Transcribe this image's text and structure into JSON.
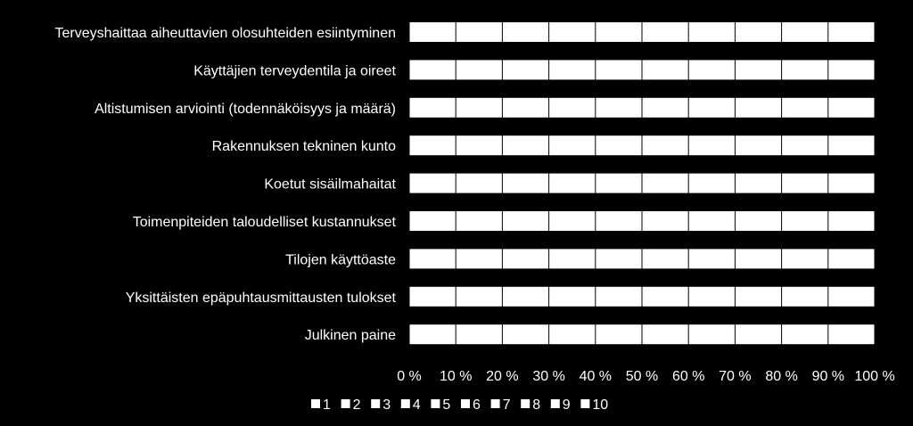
{
  "chart_data": {
    "type": "bar",
    "orientation": "horizontal",
    "stacked": "percent",
    "categories": [
      "Terveyshaittaa aiheuttavien olosuhteiden esiintyminen",
      "Käyttäjien terveydentila ja oireet",
      "Altistumisen arviointi (todennäköisyys ja määrä)",
      "Rakennuksen tekninen kunto",
      "Koetut sisäilmahaitat",
      "Toimenpiteiden taloudelliset kustannukset",
      "Tilojen käyttöaste",
      "Yksittäisten epäpuhtausmittausten tulokset",
      "Julkinen paine"
    ],
    "series": [
      {
        "name": "1",
        "values": [
          10,
          10,
          10,
          10,
          10,
          10,
          10,
          10,
          10
        ]
      },
      {
        "name": "2",
        "values": [
          10,
          10,
          10,
          10,
          10,
          10,
          10,
          10,
          10
        ]
      },
      {
        "name": "3",
        "values": [
          10,
          10,
          10,
          10,
          10,
          10,
          10,
          10,
          10
        ]
      },
      {
        "name": "4",
        "values": [
          10,
          10,
          10,
          10,
          10,
          10,
          10,
          10,
          10
        ]
      },
      {
        "name": "5",
        "values": [
          10,
          10,
          10,
          10,
          10,
          10,
          10,
          10,
          10
        ]
      },
      {
        "name": "6",
        "values": [
          10,
          10,
          10,
          10,
          10,
          10,
          10,
          10,
          10
        ]
      },
      {
        "name": "7",
        "values": [
          10,
          10,
          10,
          10,
          10,
          10,
          10,
          10,
          10
        ]
      },
      {
        "name": "8",
        "values": [
          10,
          10,
          10,
          10,
          10,
          10,
          10,
          10,
          10
        ]
      },
      {
        "name": "9",
        "values": [
          10,
          10,
          10,
          10,
          10,
          10,
          10,
          10,
          10
        ]
      },
      {
        "name": "10",
        "values": [
          10,
          10,
          10,
          10,
          10,
          10,
          10,
          10,
          10
        ]
      }
    ],
    "xlim": [
      0,
      100
    ],
    "x_ticks": [
      "0 %",
      "10 %",
      "20 %",
      "30 %",
      "40 %",
      "50 %",
      "60 %",
      "70 %",
      "80 %",
      "90 %",
      "100 %"
    ],
    "title": "",
    "xlabel": "",
    "ylabel": "",
    "grid": true,
    "legend": "bottom",
    "colors": {
      "background": "#000000",
      "bars": "#ffffff",
      "gridlines": "#000000",
      "text": "#ffffff"
    }
  }
}
